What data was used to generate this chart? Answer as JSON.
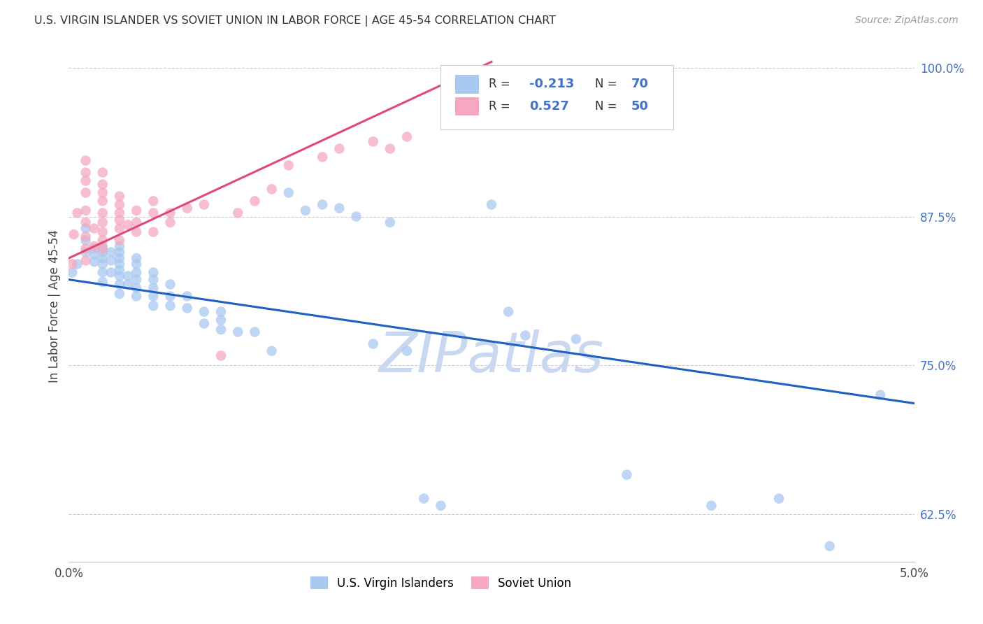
{
  "title": "U.S. VIRGIN ISLANDER VS SOVIET UNION IN LABOR FORCE | AGE 45-54 CORRELATION CHART",
  "source": "Source: ZipAtlas.com",
  "ylabel": "In Labor Force | Age 45-54",
  "xlim": [
    0.0,
    0.05
  ],
  "ylim": [
    0.585,
    1.015
  ],
  "yticks": [
    0.625,
    0.75,
    0.875,
    1.0
  ],
  "ytick_labels": [
    "62.5%",
    "75.0%",
    "87.5%",
    "100.0%"
  ],
  "xticks": [
    0.0,
    0.0125,
    0.025,
    0.0375,
    0.05
  ],
  "xtick_labels": [
    "0.0%",
    "",
    "",
    "",
    "5.0%"
  ],
  "r_blue": -0.213,
  "n_blue": 70,
  "r_pink": 0.527,
  "n_pink": 50,
  "blue_color": "#a8c8f0",
  "pink_color": "#f5a8c0",
  "blue_line_color": "#2060c0",
  "pink_line_color": "#e04878",
  "watermark": "ZIPatlas",
  "watermark_color": "#c8d8f0",
  "blue_line_x0": 0.0,
  "blue_line_y0": 0.822,
  "blue_line_x1": 0.05,
  "blue_line_y1": 0.718,
  "pink_line_x0": 0.0,
  "pink_line_x1": 0.025,
  "pink_line_y0": 0.84,
  "pink_line_y1": 1.005,
  "blue_scatter_x": [
    0.0002,
    0.0005,
    0.001,
    0.001,
    0.001,
    0.0015,
    0.0015,
    0.0015,
    0.002,
    0.002,
    0.002,
    0.002,
    0.002,
    0.002,
    0.0025,
    0.0025,
    0.0025,
    0.003,
    0.003,
    0.003,
    0.003,
    0.003,
    0.003,
    0.003,
    0.003,
    0.0035,
    0.0035,
    0.004,
    0.004,
    0.004,
    0.004,
    0.004,
    0.004,
    0.005,
    0.005,
    0.005,
    0.005,
    0.005,
    0.006,
    0.006,
    0.006,
    0.007,
    0.007,
    0.008,
    0.008,
    0.009,
    0.009,
    0.009,
    0.01,
    0.011,
    0.012,
    0.013,
    0.014,
    0.015,
    0.016,
    0.017,
    0.018,
    0.019,
    0.02,
    0.021,
    0.022,
    0.025,
    0.026,
    0.027,
    0.03,
    0.033,
    0.038,
    0.042,
    0.045,
    0.048
  ],
  "blue_scatter_y": [
    0.828,
    0.835,
    0.845,
    0.855,
    0.865,
    0.837,
    0.843,
    0.848,
    0.82,
    0.828,
    0.835,
    0.84,
    0.845,
    0.85,
    0.828,
    0.838,
    0.845,
    0.81,
    0.818,
    0.825,
    0.83,
    0.835,
    0.84,
    0.845,
    0.85,
    0.818,
    0.825,
    0.808,
    0.815,
    0.822,
    0.828,
    0.835,
    0.84,
    0.8,
    0.808,
    0.815,
    0.822,
    0.828,
    0.8,
    0.808,
    0.818,
    0.798,
    0.808,
    0.785,
    0.795,
    0.78,
    0.788,
    0.795,
    0.778,
    0.778,
    0.762,
    0.895,
    0.88,
    0.885,
    0.882,
    0.875,
    0.768,
    0.87,
    0.762,
    0.638,
    0.632,
    0.885,
    0.795,
    0.775,
    0.772,
    0.658,
    0.632,
    0.638,
    0.598,
    0.725
  ],
  "pink_scatter_x": [
    0.0002,
    0.0003,
    0.0005,
    0.001,
    0.001,
    0.001,
    0.001,
    0.001,
    0.001,
    0.001,
    0.001,
    0.001,
    0.0015,
    0.0015,
    0.002,
    0.002,
    0.002,
    0.002,
    0.002,
    0.002,
    0.002,
    0.002,
    0.002,
    0.003,
    0.003,
    0.003,
    0.003,
    0.003,
    0.003,
    0.0035,
    0.004,
    0.004,
    0.004,
    0.005,
    0.005,
    0.005,
    0.006,
    0.006,
    0.007,
    0.008,
    0.009,
    0.01,
    0.011,
    0.012,
    0.013,
    0.015,
    0.016,
    0.018,
    0.019,
    0.02
  ],
  "pink_scatter_y": [
    0.835,
    0.86,
    0.878,
    0.838,
    0.848,
    0.858,
    0.87,
    0.88,
    0.895,
    0.905,
    0.912,
    0.922,
    0.85,
    0.865,
    0.848,
    0.855,
    0.862,
    0.87,
    0.878,
    0.888,
    0.895,
    0.902,
    0.912,
    0.855,
    0.865,
    0.872,
    0.878,
    0.885,
    0.892,
    0.868,
    0.862,
    0.87,
    0.88,
    0.862,
    0.878,
    0.888,
    0.87,
    0.878,
    0.882,
    0.885,
    0.758,
    0.878,
    0.888,
    0.898,
    0.918,
    0.925,
    0.932,
    0.938,
    0.932,
    0.942
  ]
}
